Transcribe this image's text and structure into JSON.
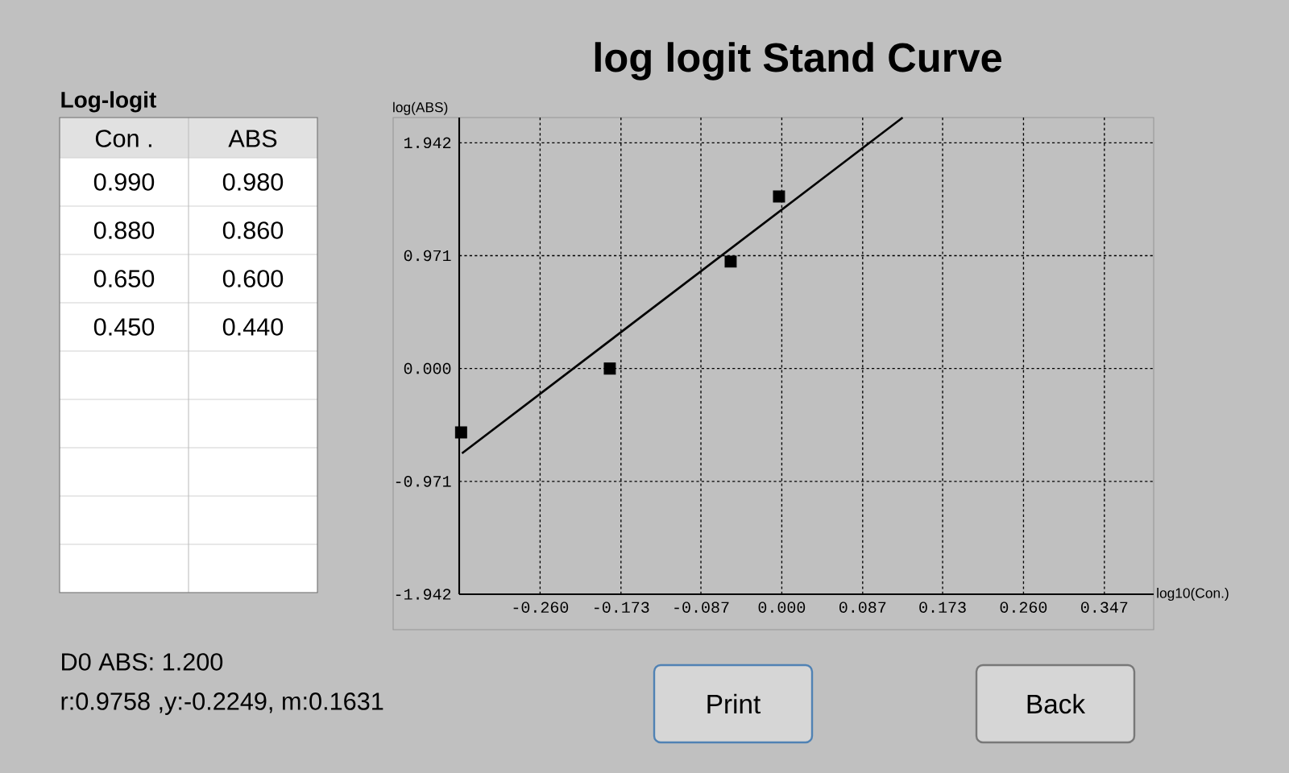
{
  "chart_data": {
    "type": "scatter",
    "title": "log logit Stand Curve",
    "xlabel": "log10(Con.)",
    "ylabel": "log(ABS)",
    "xlim": [
      -0.347,
      0.4
    ],
    "ylim": [
      -1.942,
      2.159
    ],
    "xticks": [
      {
        "value": -0.26,
        "label": "-0.260"
      },
      {
        "value": -0.173,
        "label": "-0.173"
      },
      {
        "value": -0.087,
        "label": "-0.087"
      },
      {
        "value": 0,
        "label": "0.000"
      },
      {
        "value": 0.087,
        "label": "0.087"
      },
      {
        "value": 0.173,
        "label": "0.173"
      },
      {
        "value": 0.26,
        "label": "0.260"
      },
      {
        "value": 0.347,
        "label": "0.347"
      }
    ],
    "yticks": [
      {
        "value": -1.942,
        "label": "-1.942"
      },
      {
        "value": -0.971,
        "label": "-0.971"
      },
      {
        "value": 0,
        "label": "0.000"
      },
      {
        "value": 0.971,
        "label": "0.971"
      },
      {
        "value": 1.942,
        "label": "1.942"
      }
    ],
    "grid": true,
    "series": [
      {
        "type": "scatter",
        "color": "#000000",
        "marker": "square",
        "x": [
          -0.345,
          -0.185,
          -0.055,
          -0.003
        ],
        "values": [
          -0.55,
          0,
          0.92,
          1.48
        ]
      },
      {
        "type": "line",
        "color": "#000000",
        "marker": "none",
        "x": [
          -0.344,
          0.13
        ],
        "values": [
          -0.73,
          2.159
        ]
      }
    ],
    "annotations": [
      "Log-logit",
      "Con .",
      "ABS",
      "0.990",
      "0.980",
      "0.880",
      "0.860",
      "0.650",
      "0.600",
      "0.450",
      "0.440",
      "D0 ABS: 1.200",
      "r:0.9758 ,y:-0.2249, m:0.1631",
      "Print",
      "Back"
    ]
  }
}
